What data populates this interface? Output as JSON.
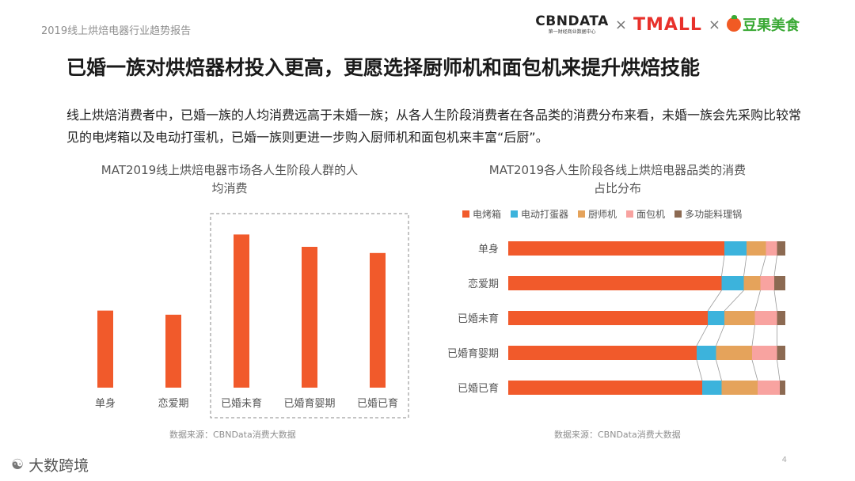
{
  "header": {
    "report_title": "2019线上烘焙电器行业趋势报告",
    "logo_cbndata": "CBNDATA",
    "logo_cbndata_sub": "第一财经商业数据中心",
    "logo_times": "×",
    "logo_tmall": "TMALL",
    "logo_douguo": "豆果美食"
  },
  "main_title": "已婚一族对烘焙器材投入更高，更愿选择厨师机和面包机来提升烘焙技能",
  "description": "线上烘焙消费者中，已婚一族的人均消费远高于未婚一族；从各人生阶段消费者在各品类的消费分布来看，未婚一族会先采购比较常见的电烤箱以及电动打蛋机，已婚一族则更进一步购入厨师机和面包机来丰富“后厨”。",
  "footer": {
    "brand": "大数跨境",
    "page": "4"
  },
  "colors": {
    "oven": "#f15a2b",
    "mixer": "#3cb3dc",
    "chef": "#e5a35b",
    "bread": "#f8a3a0",
    "pot": "#8c6a52"
  },
  "chart_data": [
    {
      "type": "bar",
      "title": "MAT2019线上烘焙电器市场各人生阶段人群的人均消费",
      "title_line1": "MAT2019线上烘焙电器市场各人生阶段人群的人",
      "title_line2": "均消费",
      "categories": [
        "单身",
        "恋爱期",
        "已婚未育",
        "已婚育婴期",
        "已婚已育"
      ],
      "values": [
        49,
        47,
        86,
        80,
        77
      ],
      "ylim": [
        0,
        100
      ],
      "highlight": [
        "已婚未育",
        "已婚育婴期",
        "已婚已育"
      ],
      "source": "数据来源：CBNData消费大数据"
    },
    {
      "type": "bar",
      "stacked": true,
      "orientation": "horizontal",
      "title": "MAT2019各人生阶段各线上烘焙电器品类的消费占比分布",
      "title_line1": "MAT2019各人生阶段各线上烘焙电器品类的消费",
      "title_line2": "占比分布",
      "categories": [
        "单身",
        "恋爱期",
        "已婚未育",
        "已婚育婴期",
        "已婚已育"
      ],
      "series": [
        {
          "name": "电烤箱",
          "values": [
            78,
            77,
            72,
            68,
            70
          ]
        },
        {
          "name": "电动打蛋器",
          "values": [
            8,
            8,
            6,
            7,
            7
          ]
        },
        {
          "name": "厨师机",
          "values": [
            7,
            6,
            11,
            13,
            13
          ]
        },
        {
          "name": "面包机",
          "values": [
            4,
            5,
            8,
            9,
            8
          ]
        },
        {
          "name": "多功能料理锅",
          "values": [
            3,
            4,
            3,
            3,
            2
          ]
        }
      ],
      "xlim": [
        0,
        100
      ],
      "source": "数据来源：CBNData消费大数据"
    }
  ]
}
